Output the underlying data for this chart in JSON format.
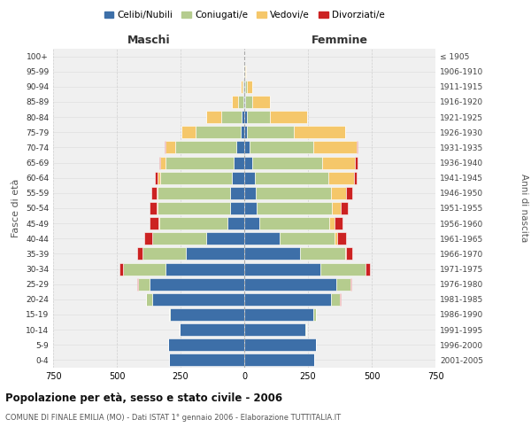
{
  "age_groups": [
    "0-4",
    "5-9",
    "10-14",
    "15-19",
    "20-24",
    "25-29",
    "30-34",
    "35-39",
    "40-44",
    "45-49",
    "50-54",
    "55-59",
    "60-64",
    "65-69",
    "70-74",
    "75-79",
    "80-84",
    "85-89",
    "90-94",
    "95-99",
    "100+"
  ],
  "birth_years": [
    "2001-2005",
    "1996-2000",
    "1991-1995",
    "1986-1990",
    "1981-1985",
    "1976-1980",
    "1971-1975",
    "1966-1970",
    "1961-1965",
    "1956-1960",
    "1951-1955",
    "1946-1950",
    "1941-1945",
    "1936-1940",
    "1931-1935",
    "1926-1930",
    "1921-1925",
    "1916-1920",
    "1911-1915",
    "1906-1910",
    "≤ 1905"
  ],
  "males": {
    "celibi": [
      295,
      300,
      255,
      290,
      360,
      370,
      310,
      230,
      150,
      65,
      55,
      55,
      50,
      40,
      30,
      15,
      10,
      5,
      3,
      1,
      0
    ],
    "coniugati": [
      0,
      0,
      0,
      5,
      25,
      45,
      165,
      170,
      210,
      270,
      285,
      285,
      280,
      270,
      240,
      175,
      80,
      20,
      5,
      1,
      0
    ],
    "vedovi": [
      0,
      0,
      0,
      0,
      0,
      0,
      1,
      1,
      2,
      2,
      5,
      5,
      10,
      20,
      40,
      55,
      60,
      25,
      5,
      1,
      0
    ],
    "divorziati": [
      0,
      0,
      0,
      0,
      2,
      5,
      15,
      20,
      30,
      35,
      25,
      20,
      10,
      5,
      3,
      2,
      1,
      0,
      0,
      0,
      0
    ]
  },
  "females": {
    "nubili": [
      275,
      280,
      240,
      270,
      340,
      360,
      300,
      220,
      140,
      60,
      50,
      45,
      40,
      30,
      20,
      10,
      10,
      5,
      3,
      1,
      0
    ],
    "coniugate": [
      0,
      0,
      2,
      10,
      35,
      55,
      175,
      175,
      215,
      275,
      295,
      295,
      290,
      275,
      250,
      185,
      90,
      25,
      8,
      2,
      0
    ],
    "vedove": [
      0,
      0,
      0,
      0,
      0,
      1,
      2,
      5,
      10,
      20,
      35,
      60,
      100,
      130,
      170,
      200,
      145,
      70,
      20,
      4,
      1
    ],
    "divorziate": [
      0,
      0,
      0,
      0,
      2,
      5,
      15,
      25,
      35,
      30,
      25,
      25,
      12,
      8,
      5,
      2,
      1,
      0,
      0,
      0,
      0
    ]
  },
  "colors": {
    "celibi": "#3d6fa8",
    "coniugati": "#b5cc8e",
    "vedovi": "#f5c76a",
    "divorziati": "#cc2222"
  },
  "xlim": 750,
  "title": "Popolazione per età, sesso e stato civile - 2006",
  "subtitle": "COMUNE DI FINALE EMILIA (MO) - Dati ISTAT 1° gennaio 2006 - Elaborazione TUTTITALIA.IT",
  "ylabel_left": "Fasce di età",
  "ylabel_right": "Anni di nascita",
  "xlabel_left": "Maschi",
  "xlabel_right": "Femmine",
  "legend_labels": [
    "Celibi/Nubili",
    "Coniugati/e",
    "Vedovi/e",
    "Divorziati/e"
  ],
  "background_color": "#ffffff",
  "plot_bg": "#f0f0f0",
  "grid_color": "#cccccc"
}
